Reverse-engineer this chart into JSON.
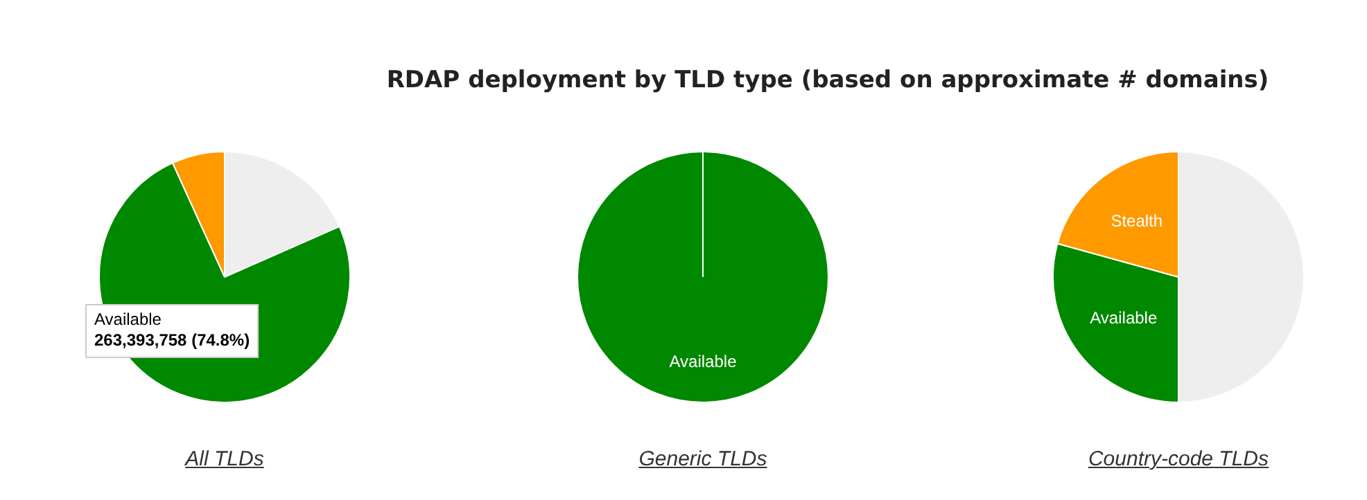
{
  "chart_data": [
    {
      "type": "pie",
      "title": "All TLDs",
      "annotations": [
        "RDAP deployment by TLD type (based on approximate # domains)"
      ],
      "categories": [
        null,
        "Available",
        null
      ],
      "values": [
        18.4,
        74.8,
        6.8
      ],
      "colors": [
        "#eeeeee",
        "#008800",
        "#ff9900"
      ],
      "value_labels": [
        null,
        "263,393,758 (74.8%)",
        null
      ]
    },
    {
      "type": "pie",
      "title": "Generic TLDs",
      "categories": [
        null,
        "Available",
        null
      ],
      "values": [
        0,
        100,
        0
      ],
      "colors": [
        "#eeeeee",
        "#008800",
        "#ff9900"
      ]
    },
    {
      "type": "pie",
      "title": "Country-code TLDs",
      "categories": [
        null,
        "Available",
        "Stealth"
      ],
      "values": [
        50,
        29.3,
        20.7
      ],
      "colors": [
        "#eeeeee",
        "#008800",
        "#ff9900"
      ]
    }
  ]
}
